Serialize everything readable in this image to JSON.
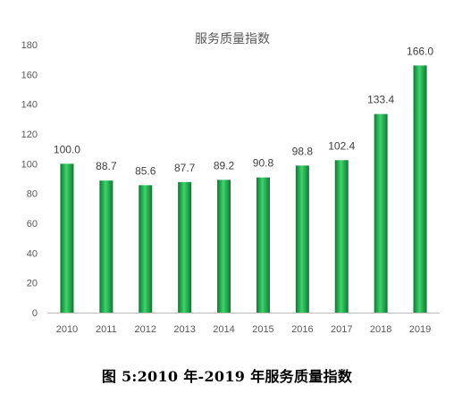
{
  "chart_data": {
    "type": "bar",
    "title": "服务质量指数",
    "categories": [
      "2010",
      "2011",
      "2012",
      "2013",
      "2014",
      "2015",
      "2016",
      "2017",
      "2018",
      "2019"
    ],
    "values": [
      100.0,
      88.7,
      85.6,
      87.7,
      89.2,
      90.8,
      98.8,
      102.4,
      133.4,
      166.0
    ],
    "data_labels": [
      "100.0",
      "88.7",
      "85.6",
      "87.7",
      "89.2",
      "90.8",
      "98.8",
      "102.4",
      "133.4",
      "166.0"
    ],
    "y_ticks": [
      "0",
      "20",
      "40",
      "60",
      "80",
      "100",
      "120",
      "140",
      "160",
      "180"
    ],
    "ylim": [
      0,
      180
    ],
    "grid": false,
    "legend": "none",
    "colors": {
      "bar_dark": "#0b7a32",
      "bar_mid": "#22b14c",
      "bar_light": "#3dd46a",
      "axis": "#bfbfbf"
    }
  },
  "caption": "图 5:2010 年-2019 年服务质量指数"
}
